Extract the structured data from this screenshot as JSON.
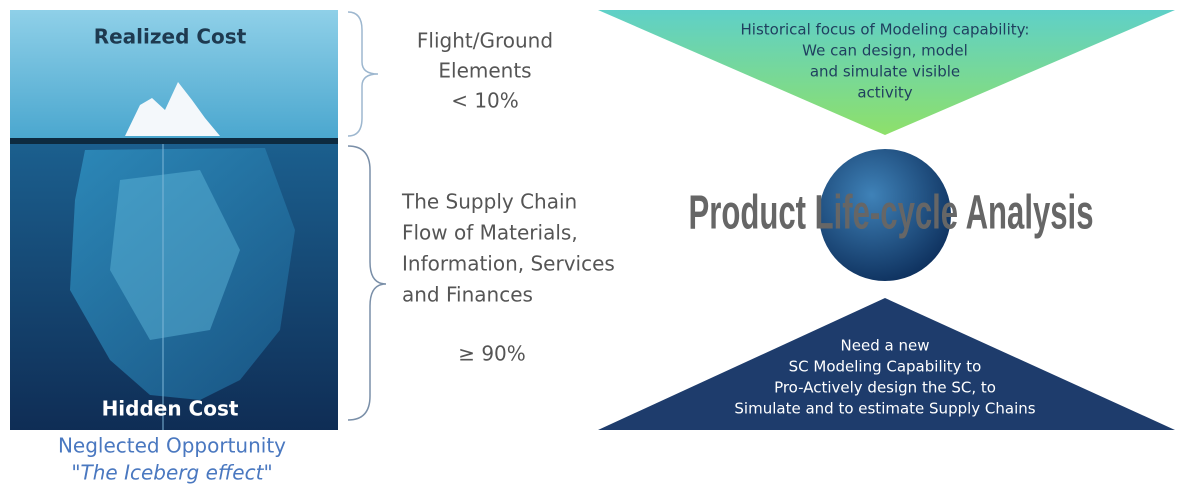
{
  "iceberg": {
    "top_label": "Realized Cost",
    "bottom_label": "Hidden Cost",
    "caption": [
      "Neglected Opportunity",
      "\"The Iceberg effect\""
    ]
  },
  "upper_bracket": {
    "lines": [
      "Flight/Ground",
      "Elements",
      "< 10%"
    ]
  },
  "lower_bracket": {
    "lines": [
      "The Supply Chain",
      "Flow of Materials,",
      "Information, Services",
      "and Finances"
    ],
    "share": "≥ 90%"
  },
  "top_triangle": {
    "lines": [
      "Historical focus of Modeling capability:",
      "We can design, model",
      "and simulate visible",
      "activity"
    ]
  },
  "center": {
    "label": "Product Life-cycle Analysis"
  },
  "bottom_triangle": {
    "lines": [
      "Need a new",
      "SC Modeling Capability to",
      "Pro-Actively design the SC, to",
      "Simulate and to estimate Supply Chains"
    ]
  }
}
